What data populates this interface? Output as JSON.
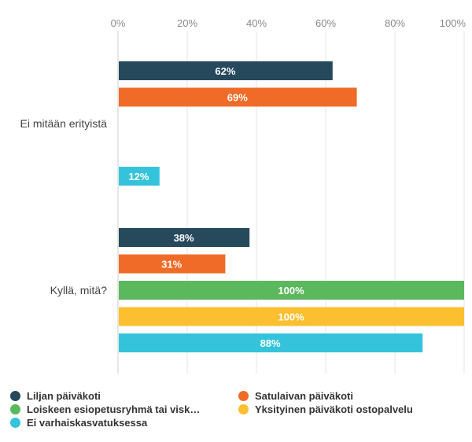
{
  "chart_data": {
    "type": "bar",
    "orientation": "horizontal",
    "categories": [
      "Ei mitään erityistä",
      "Kyllä, mitä?"
    ],
    "xlim": [
      0,
      100
    ],
    "x_ticks": [
      "0%",
      "20%",
      "40%",
      "60%",
      "80%",
      "100%"
    ],
    "grid": true,
    "legend_position": "bottom",
    "series": [
      {
        "name": "Liljan päiväkoti",
        "color": "#26495c",
        "values": [
          62,
          38
        ],
        "labels": [
          "62%",
          "38%"
        ]
      },
      {
        "name": "Satulaivan päiväkoti",
        "color": "#f06b27",
        "values": [
          69,
          31
        ],
        "labels": [
          "69%",
          "31%"
        ]
      },
      {
        "name": "Loiskeen esiopetusryhmä tai visk…",
        "color": "#5cb85c",
        "values": [
          0,
          100
        ],
        "labels": [
          "",
          "100%"
        ]
      },
      {
        "name": "Yksityinen päiväkoti ostopalvelu",
        "color": "#fbbf2f",
        "values": [
          0,
          100
        ],
        "labels": [
          "",
          "100%"
        ]
      },
      {
        "name": "Ei varhaiskasvatuksessa",
        "color": "#35c3dc",
        "values": [
          12,
          88
        ],
        "labels": [
          "12%",
          "88%"
        ]
      }
    ]
  }
}
